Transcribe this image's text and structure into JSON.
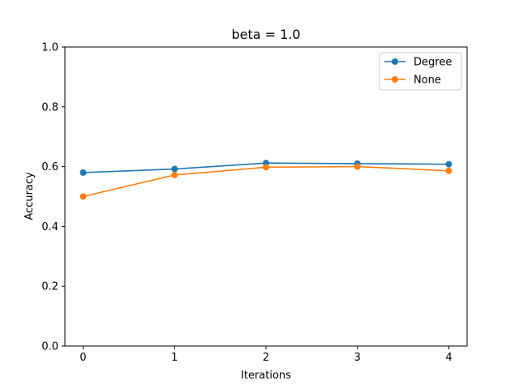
{
  "chart_data": {
    "type": "line",
    "title": "beta = 1.0",
    "xlabel": "Iterations",
    "ylabel": "Accuracy",
    "x": [
      0,
      1,
      2,
      3,
      4
    ],
    "xlim": [
      -0.2,
      4.2
    ],
    "ylim": [
      0.0,
      1.0
    ],
    "xticks": [
      "0",
      "1",
      "2",
      "3",
      "4"
    ],
    "yticks": [
      "0.0",
      "0.2",
      "0.4",
      "0.6",
      "0.8",
      "1.0"
    ],
    "grid": false,
    "legend_position": "top-right",
    "series": [
      {
        "name": "Degree",
        "color": "#1f77b4",
        "marker": "circle",
        "values": [
          0.58,
          0.592,
          0.612,
          0.61,
          0.608
        ]
      },
      {
        "name": "None",
        "color": "#ff7f0e",
        "marker": "circle",
        "values": [
          0.5,
          0.572,
          0.598,
          0.6,
          0.586
        ]
      }
    ]
  }
}
